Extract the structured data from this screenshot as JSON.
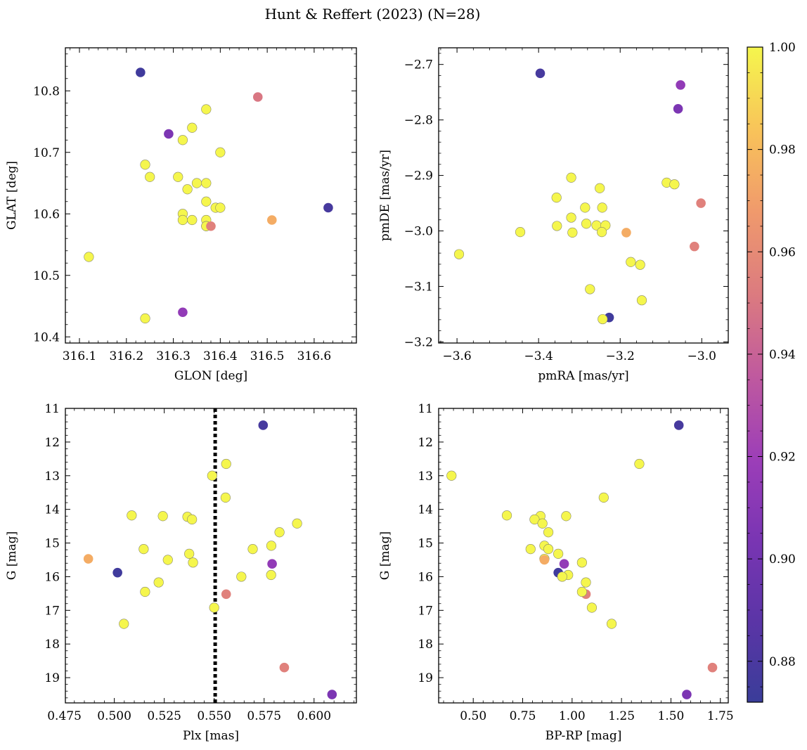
{
  "figure": {
    "title": "Hunt & Reffert (2023) (N=28)"
  },
  "colorbar": {
    "min": 0.872,
    "max": 1.0,
    "ticks": [
      0.88,
      0.9,
      0.92,
      0.94,
      0.96,
      0.98,
      1.0
    ],
    "tick_labels": [
      "0.88",
      "0.90",
      "0.92",
      "0.94",
      "0.96",
      "0.98",
      "1.00"
    ],
    "colormap": "plasma"
  },
  "chart_data": [
    {
      "type": "scatter",
      "id": "sky",
      "xlabel": "GLON [deg]",
      "ylabel": "GLAT [deg]",
      "xlim": [
        316.07,
        316.69
      ],
      "ylim": [
        10.39,
        10.87
      ],
      "y_inverted": false,
      "xticks": [
        316.1,
        316.2,
        316.3,
        316.4,
        316.5,
        316.6
      ],
      "xtick_labels": [
        "316.1",
        "316.2",
        "316.3",
        "316.4",
        "316.5",
        "316.6"
      ],
      "yticks": [
        10.4,
        10.5,
        10.6,
        10.7,
        10.8
      ],
      "ytick_labels": [
        "10.4",
        "10.5",
        "10.6",
        "10.7",
        "10.8"
      ],
      "x": [
        316.23,
        316.48,
        316.37,
        316.29,
        316.34,
        316.32,
        316.4,
        316.24,
        316.25,
        316.31,
        316.37,
        316.35,
        316.33,
        316.37,
        316.39,
        316.4,
        316.32,
        316.32,
        316.34,
        316.37,
        316.37,
        316.37,
        316.38,
        316.51,
        316.63,
        316.12,
        316.32,
        316.24
      ],
      "y": [
        10.83,
        10.79,
        10.77,
        10.73,
        10.74,
        10.72,
        10.7,
        10.68,
        10.66,
        10.66,
        10.65,
        10.65,
        10.64,
        10.62,
        10.61,
        10.61,
        10.6,
        10.59,
        10.59,
        10.59,
        10.58,
        10.58,
        10.58,
        10.59,
        10.61,
        10.53,
        10.44,
        10.43
      ],
      "probability": [
        0.875,
        0.95,
        1.0,
        0.905,
        1.0,
        1.0,
        1.0,
        1.0,
        1.0,
        1.0,
        1.0,
        1.0,
        1.0,
        1.0,
        1.0,
        1.0,
        1.0,
        1.0,
        1.0,
        1.0,
        1.0,
        1.0,
        0.955,
        0.975,
        0.878,
        1.0,
        0.915,
        1.0
      ]
    },
    {
      "type": "scatter",
      "id": "pm",
      "xlabel": "pmRA [mas/yr]",
      "ylabel": "pmDE [mas/yr]",
      "xlim": [
        -3.645,
        -2.935
      ],
      "ylim": [
        -3.202,
        -2.67
      ],
      "y_inverted": false,
      "xticks": [
        -3.6,
        -3.4,
        -3.2,
        -3.0
      ],
      "xtick_labels": [
        "−3.6",
        "−3.4",
        "−3.2",
        "−3.0"
      ],
      "yticks": [
        -3.2,
        -3.1,
        -3.0,
        -2.9,
        -2.8,
        -2.7
      ],
      "ytick_labels": [
        "−3.2",
        "−3.1",
        "−3.0",
        "−2.9",
        "−2.8",
        "−2.7"
      ],
      "x": [
        -3.396,
        -3.052,
        -3.058,
        -3.32,
        -3.356,
        -3.25,
        -3.286,
        -3.244,
        -3.086,
        -3.067,
        -3.002,
        -3.32,
        -3.355,
        -3.283,
        -3.258,
        -3.236,
        -3.445,
        -3.317,
        -3.245,
        -3.185,
        -3.018,
        -3.595,
        -3.174,
        -3.151,
        -3.274,
        -3.147,
        -3.227,
        -3.243
      ],
      "y": [
        -2.716,
        -2.737,
        -2.78,
        -2.904,
        -2.94,
        -2.923,
        -2.958,
        -2.958,
        -2.913,
        -2.916,
        -2.95,
        -2.976,
        -2.991,
        -2.987,
        -2.99,
        -2.99,
        -3.002,
        -3.003,
        -3.002,
        -3.003,
        -3.028,
        -3.042,
        -3.056,
        -3.061,
        -3.105,
        -3.125,
        -3.156,
        -3.159
      ],
      "probability": [
        0.878,
        0.915,
        0.905,
        1.0,
        1.0,
        1.0,
        1.0,
        1.0,
        1.0,
        1.0,
        0.955,
        1.0,
        1.0,
        1.0,
        1.0,
        1.0,
        1.0,
        1.0,
        1.0,
        0.975,
        0.955,
        1.0,
        1.0,
        1.0,
        1.0,
        1.0,
        0.875,
        1.0
      ]
    },
    {
      "type": "scatter",
      "id": "plx",
      "xlabel": "Plx [mas]",
      "ylabel": "G [mag]",
      "xlim": [
        0.4755,
        0.6212
      ],
      "ylim": [
        19.75,
        11.0
      ],
      "y_inverted": true,
      "vline": 0.5505,
      "xticks": [
        0.475,
        0.5,
        0.525,
        0.55,
        0.575,
        0.6
      ],
      "xtick_labels": [
        "0.475",
        "0.500",
        "0.525",
        "0.550",
        "0.575",
        "0.600"
      ],
      "yticks": [
        11,
        12,
        13,
        14,
        15,
        16,
        17,
        18,
        19
      ],
      "ytick_labels": [
        "11",
        "12",
        "13",
        "14",
        "15",
        "16",
        "17",
        "18",
        "19"
      ],
      "x": [
        0.5745,
        0.556,
        0.549,
        0.5557,
        0.5087,
        0.5243,
        0.5366,
        0.5389,
        0.5915,
        0.5827,
        0.5786,
        0.5147,
        0.5693,
        0.5375,
        0.5268,
        0.5394,
        0.487,
        0.579,
        0.5016,
        0.5785,
        0.5636,
        0.556,
        0.5222,
        0.5154,
        0.55,
        0.5048,
        0.5851,
        0.609
      ],
      "y": [
        11.5,
        12.65,
        13.0,
        13.65,
        14.18,
        14.2,
        14.22,
        14.3,
        14.42,
        14.68,
        15.08,
        15.18,
        15.18,
        15.32,
        15.5,
        15.58,
        15.47,
        15.62,
        15.88,
        15.95,
        16.0,
        16.52,
        16.17,
        16.45,
        16.92,
        17.4,
        18.7,
        19.5
      ],
      "probability": [
        0.878,
        1.0,
        1.0,
        1.0,
        1.0,
        1.0,
        1.0,
        1.0,
        1.0,
        1.0,
        1.0,
        1.0,
        1.0,
        1.0,
        1.0,
        1.0,
        0.975,
        0.915,
        0.875,
        1.0,
        1.0,
        0.955,
        1.0,
        1.0,
        1.0,
        1.0,
        0.955,
        0.905
      ]
    },
    {
      "type": "scatter",
      "id": "cmd",
      "xlabel": "BP-RP [mag]",
      "ylabel": "G [mag]",
      "xlim": [
        0.325,
        1.79
      ],
      "ylim": [
        19.75,
        11.0
      ],
      "y_inverted": true,
      "xticks": [
        0.5,
        0.75,
        1.0,
        1.25,
        1.5,
        1.75
      ],
      "xtick_labels": [
        "0.50",
        "0.75",
        "1.00",
        "1.25",
        "1.50",
        "1.75"
      ],
      "yticks": [
        11,
        12,
        13,
        14,
        15,
        16,
        17,
        18,
        19
      ],
      "ytick_labels": [
        "11",
        "12",
        "13",
        "14",
        "15",
        "16",
        "17",
        "18",
        "19"
      ],
      "x": [
        1.54,
        1.34,
        0.39,
        1.16,
        0.67,
        0.84,
        0.97,
        0.81,
        0.85,
        0.88,
        0.86,
        0.79,
        0.88,
        0.93,
        0.86,
        1.05,
        0.86,
        0.96,
        0.93,
        0.98,
        0.95,
        1.07,
        1.07,
        1.05,
        1.1,
        1.2,
        1.71,
        1.58
      ],
      "y": [
        11.5,
        12.65,
        13.0,
        13.65,
        14.18,
        14.2,
        14.2,
        14.3,
        14.42,
        14.68,
        15.08,
        15.18,
        15.18,
        15.32,
        15.47,
        15.58,
        15.5,
        15.62,
        15.88,
        15.95,
        16.0,
        16.17,
        16.52,
        16.45,
        16.92,
        17.4,
        18.7,
        19.5
      ],
      "probability": [
        0.878,
        1.0,
        1.0,
        1.0,
        1.0,
        1.0,
        1.0,
        1.0,
        1.0,
        1.0,
        1.0,
        1.0,
        1.0,
        1.0,
        1.0,
        1.0,
        0.975,
        0.915,
        0.875,
        1.0,
        1.0,
        1.0,
        0.955,
        1.0,
        1.0,
        1.0,
        0.955,
        0.905
      ]
    }
  ]
}
